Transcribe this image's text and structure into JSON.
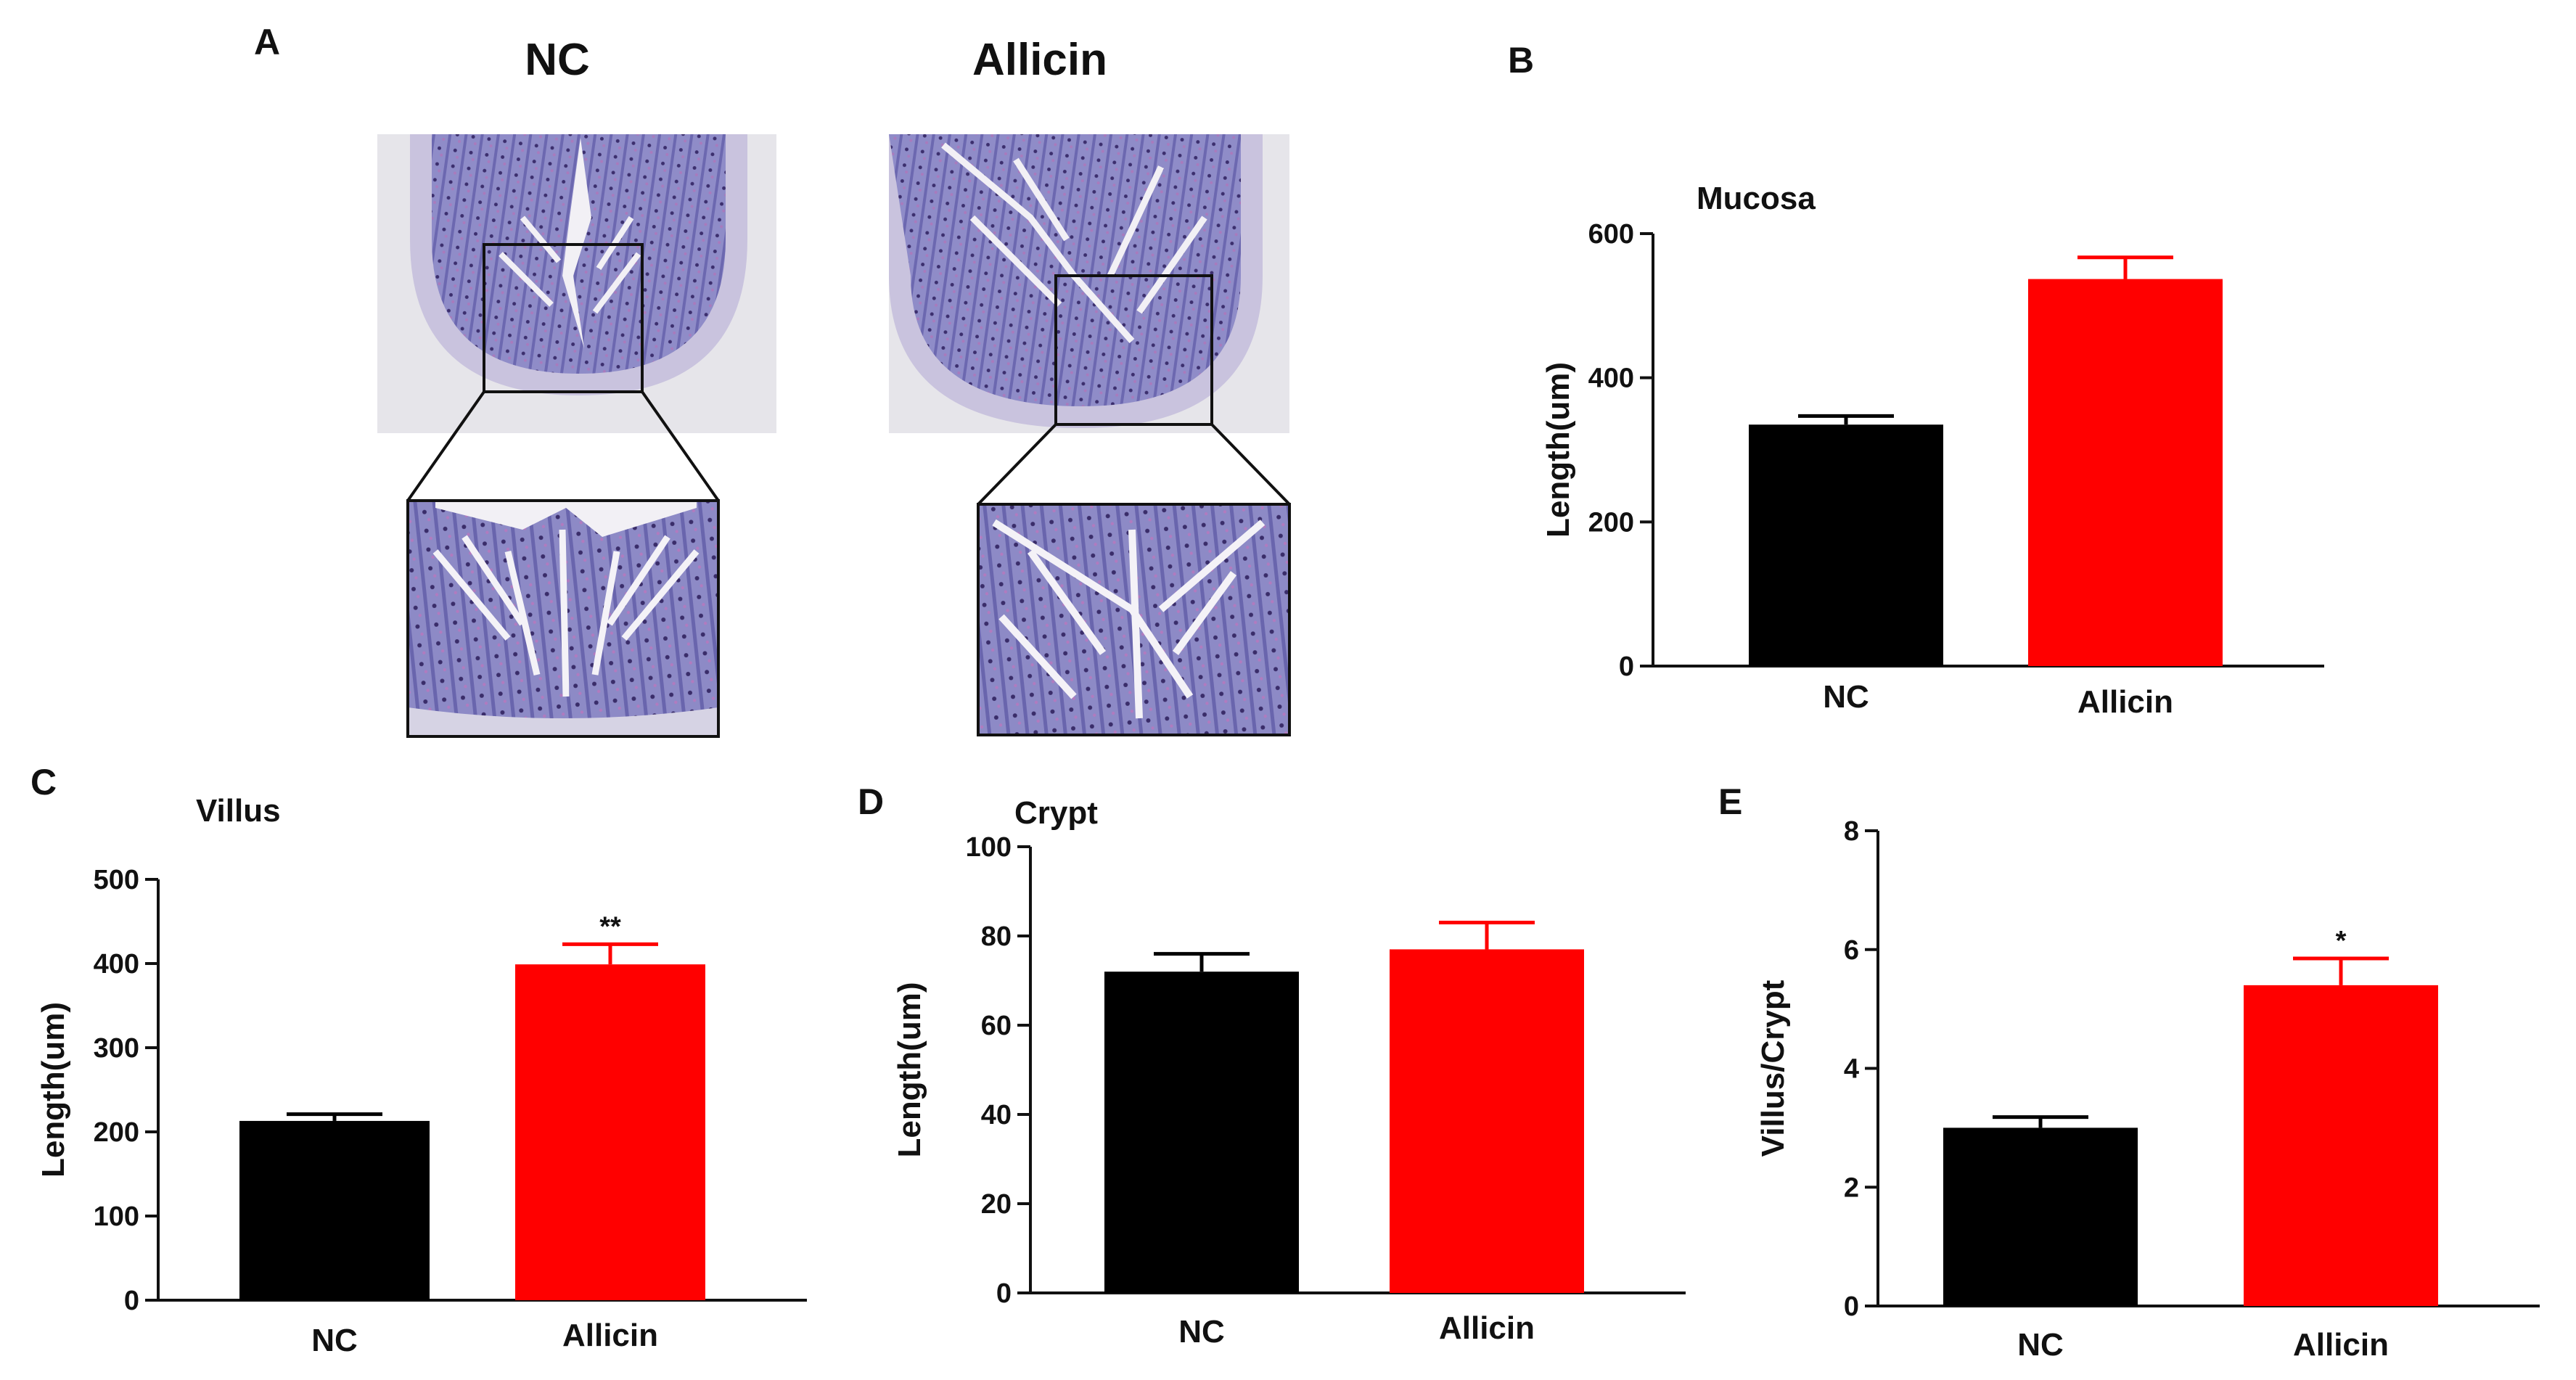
{
  "panel_labels": {
    "a": "A",
    "b": "B",
    "c": "C",
    "d": "D",
    "e": "E"
  },
  "histology": {
    "groups": [
      "NC",
      "Allicin"
    ]
  },
  "colors": {
    "NC": "#000000",
    "Allicin": "#ff0000"
  },
  "chart_data": [
    {
      "panel": "B",
      "type": "bar",
      "title": "Mucosa",
      "categories": [
        "NC",
        "Allicin"
      ],
      "values": [
        335,
        537
      ],
      "errors": [
        12,
        30
      ],
      "ylabel": "Length(um)",
      "ylim": [
        0,
        600
      ],
      "yticks": [
        0,
        200,
        400,
        600
      ],
      "significance": [
        "",
        ""
      ]
    },
    {
      "panel": "C",
      "type": "bar",
      "title": "Villus",
      "categories": [
        "NC",
        "Allicin"
      ],
      "values": [
        213,
        399
      ],
      "errors": [
        8,
        24
      ],
      "ylabel": "Length(um)",
      "ylim": [
        0,
        500
      ],
      "yticks": [
        0,
        100,
        200,
        300,
        400,
        500
      ],
      "significance": [
        "",
        "**"
      ]
    },
    {
      "panel": "D",
      "type": "bar",
      "title": "Crypt",
      "categories": [
        "NC",
        "Allicin"
      ],
      "values": [
        72,
        77
      ],
      "errors": [
        4,
        6
      ],
      "ylabel": "Length(um)",
      "ylim": [
        0,
        100
      ],
      "yticks": [
        0,
        20,
        40,
        60,
        80,
        100
      ],
      "significance": [
        "",
        ""
      ]
    },
    {
      "panel": "E",
      "type": "bar",
      "title": "",
      "categories": [
        "NC",
        "Allicin"
      ],
      "values": [
        3.0,
        5.4
      ],
      "errors": [
        0.18,
        0.45
      ],
      "ylabel": "Villus/Crypt",
      "ylim": [
        0,
        8
      ],
      "yticks": [
        0,
        2,
        4,
        6,
        8
      ],
      "significance": [
        "",
        "*"
      ]
    }
  ]
}
